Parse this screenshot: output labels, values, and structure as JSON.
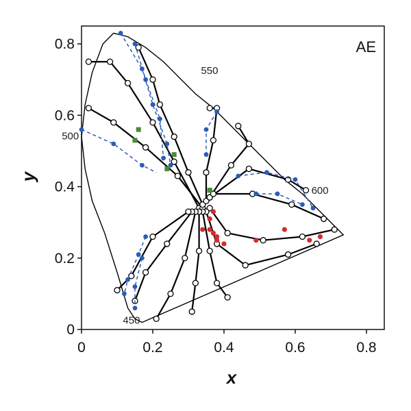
{
  "chart_data": {
    "type": "scatter",
    "title": "",
    "panel_label": "AE",
    "xlabel": "x",
    "ylabel": "y",
    "xlim": [
      0,
      0.85
    ],
    "ylim": [
      0,
      0.85
    ],
    "xticks": [
      0,
      0.2,
      0.4,
      0.6,
      0.8
    ],
    "yticks": [
      0,
      0.2,
      0.4,
      0.6,
      0.8
    ],
    "xtick_labels": [
      "0",
      "0.2",
      "0.4",
      "0.6",
      "0.8"
    ],
    "ytick_labels": [
      "0",
      "0.2",
      "0.4",
      "0.6",
      "0.8"
    ],
    "grid": false,
    "colors": {
      "blue": "#2a5cb8",
      "green": "#4a8a3a",
      "red": "#d42b2b",
      "curve": "#000000"
    },
    "spectral_locus": [
      [
        0.17,
        0.02
      ],
      [
        0.15,
        0.03
      ],
      [
        0.13,
        0.06
      ],
      [
        0.1,
        0.16
      ],
      [
        0.065,
        0.27
      ],
      [
        0.03,
        0.36
      ],
      [
        0.01,
        0.45
      ],
      [
        0.0,
        0.54
      ],
      [
        0.01,
        0.63
      ],
      [
        0.03,
        0.72
      ],
      [
        0.06,
        0.8
      ],
      [
        0.09,
        0.83
      ],
      [
        0.13,
        0.82
      ],
      [
        0.18,
        0.79
      ],
      [
        0.23,
        0.75
      ],
      [
        0.28,
        0.7
      ],
      [
        0.32,
        0.66
      ],
      [
        0.37,
        0.62
      ],
      [
        0.42,
        0.57
      ],
      [
        0.47,
        0.52
      ],
      [
        0.52,
        0.47
      ],
      [
        0.57,
        0.42
      ],
      [
        0.62,
        0.38
      ],
      [
        0.67,
        0.33
      ],
      [
        0.71,
        0.29
      ],
      [
        0.735,
        0.265
      ]
    ],
    "wavelength_labels": [
      {
        "text": "450",
        "x": 0.17,
        "y": 0.02
      },
      {
        "text": "500",
        "x": 0.01,
        "y": 0.54
      },
      {
        "text": "550",
        "x": 0.32,
        "y": 0.7
      },
      {
        "text": "600",
        "x": 0.63,
        "y": 0.38
      }
    ],
    "hue_lines": [
      [
        [
          0.33,
          0.34
        ],
        [
          0.26,
          0.47
        ],
        [
          0.2,
          0.58
        ],
        [
          0.13,
          0.69
        ],
        [
          0.08,
          0.75
        ],
        [
          0.02,
          0.75
        ]
      ],
      [
        [
          0.34,
          0.34
        ],
        [
          0.27,
          0.43
        ],
        [
          0.18,
          0.51
        ],
        [
          0.09,
          0.58
        ],
        [
          0.02,
          0.62
        ]
      ],
      [
        [
          0.34,
          0.35
        ],
        [
          0.3,
          0.44
        ],
        [
          0.26,
          0.54
        ],
        [
          0.22,
          0.63
        ],
        [
          0.2,
          0.7
        ],
        [
          0.16,
          0.79
        ]
      ],
      [
        [
          0.35,
          0.36
        ],
        [
          0.35,
          0.44
        ],
        [
          0.37,
          0.53
        ],
        [
          0.38,
          0.62
        ],
        [
          0.36,
          0.62
        ]
      ],
      [
        [
          0.36,
          0.37
        ],
        [
          0.42,
          0.46
        ],
        [
          0.47,
          0.52
        ],
        [
          0.44,
          0.57
        ]
      ],
      [
        [
          0.36,
          0.37
        ],
        [
          0.47,
          0.45
        ],
        [
          0.58,
          0.42
        ],
        [
          0.63,
          0.39
        ]
      ],
      [
        [
          0.37,
          0.38
        ],
        [
          0.48,
          0.38
        ],
        [
          0.59,
          0.35
        ],
        [
          0.68,
          0.31
        ]
      ],
      [
        [
          0.36,
          0.34
        ],
        [
          0.41,
          0.27
        ],
        [
          0.51,
          0.25
        ],
        [
          0.62,
          0.26
        ],
        [
          0.71,
          0.28
        ]
      ],
      [
        [
          0.35,
          0.33
        ],
        [
          0.38,
          0.24
        ],
        [
          0.46,
          0.18
        ],
        [
          0.58,
          0.21
        ],
        [
          0.66,
          0.24
        ]
      ],
      [
        [
          0.34,
          0.33
        ],
        [
          0.36,
          0.22
        ],
        [
          0.38,
          0.13
        ],
        [
          0.41,
          0.09
        ]
      ],
      [
        [
          0.33,
          0.33
        ],
        [
          0.33,
          0.22
        ],
        [
          0.32,
          0.13
        ],
        [
          0.31,
          0.05
        ]
      ],
      [
        [
          0.32,
          0.33
        ],
        [
          0.29,
          0.2
        ],
        [
          0.25,
          0.1
        ],
        [
          0.21,
          0.03
        ]
      ],
      [
        [
          0.31,
          0.33
        ],
        [
          0.24,
          0.24
        ],
        [
          0.18,
          0.16
        ],
        [
          0.15,
          0.08
        ]
      ],
      [
        [
          0.3,
          0.33
        ],
        [
          0.2,
          0.26
        ],
        [
          0.14,
          0.15
        ],
        [
          0.1,
          0.11
        ]
      ]
    ],
    "blue_dashed_lines": [
      [
        [
          0.11,
          0.83
        ],
        [
          0.17,
          0.73
        ],
        [
          0.2,
          0.63
        ],
        [
          0.24,
          0.52
        ],
        [
          0.25,
          0.46
        ]
      ],
      [
        [
          0.15,
          0.8
        ],
        [
          0.18,
          0.7
        ],
        [
          0.22,
          0.59
        ],
        [
          0.23,
          0.48
        ]
      ],
      [
        [
          0.0,
          0.56
        ],
        [
          0.09,
          0.52
        ],
        [
          0.17,
          0.46
        ],
        [
          0.21,
          0.44
        ]
      ],
      [
        [
          0.38,
          0.61
        ],
        [
          0.35,
          0.56
        ],
        [
          0.35,
          0.49
        ]
      ],
      [
        [
          0.44,
          0.43
        ],
        [
          0.52,
          0.44
        ],
        [
          0.6,
          0.42
        ],
        [
          0.65,
          0.34
        ]
      ],
      [
        [
          0.49,
          0.38
        ],
        [
          0.55,
          0.38
        ],
        [
          0.62,
          0.35
        ]
      ],
      [
        [
          0.18,
          0.26
        ],
        [
          0.16,
          0.21
        ],
        [
          0.13,
          0.14
        ],
        [
          0.12,
          0.1
        ]
      ],
      [
        [
          0.17,
          0.2
        ],
        [
          0.15,
          0.12
        ],
        [
          0.15,
          0.06
        ]
      ]
    ],
    "blue_points": [
      [
        0.11,
        0.83
      ],
      [
        0.17,
        0.73
      ],
      [
        0.2,
        0.63
      ],
      [
        0.24,
        0.52
      ],
      [
        0.25,
        0.46
      ],
      [
        0.15,
        0.8
      ],
      [
        0.18,
        0.7
      ],
      [
        0.22,
        0.59
      ],
      [
        0.23,
        0.48
      ],
      [
        0.0,
        0.56
      ],
      [
        0.09,
        0.52
      ],
      [
        0.17,
        0.46
      ],
      [
        0.38,
        0.61
      ],
      [
        0.35,
        0.56
      ],
      [
        0.35,
        0.49
      ],
      [
        0.44,
        0.43
      ],
      [
        0.52,
        0.44
      ],
      [
        0.6,
        0.42
      ],
      [
        0.65,
        0.34
      ],
      [
        0.49,
        0.38
      ],
      [
        0.55,
        0.38
      ],
      [
        0.62,
        0.35
      ],
      [
        0.18,
        0.26
      ],
      [
        0.16,
        0.21
      ],
      [
        0.13,
        0.14
      ],
      [
        0.12,
        0.1
      ],
      [
        0.17,
        0.2
      ],
      [
        0.15,
        0.12
      ],
      [
        0.15,
        0.06
      ]
    ],
    "green_points": [
      [
        0.15,
        0.53
      ],
      [
        0.24,
        0.45
      ],
      [
        0.26,
        0.49
      ],
      [
        0.16,
        0.56
      ],
      [
        0.36,
        0.39
      ],
      [
        0.36,
        0.39
      ]
    ],
    "red_points": [
      [
        0.37,
        0.33
      ],
      [
        0.37,
        0.27
      ],
      [
        0.38,
        0.25
      ],
      [
        0.4,
        0.24
      ],
      [
        0.49,
        0.25
      ],
      [
        0.57,
        0.28
      ],
      [
        0.64,
        0.25
      ],
      [
        0.67,
        0.26
      ],
      [
        0.36,
        0.28
      ],
      [
        0.38,
        0.26
      ],
      [
        0.34,
        0.28
      ],
      [
        0.36,
        0.31
      ]
    ]
  }
}
